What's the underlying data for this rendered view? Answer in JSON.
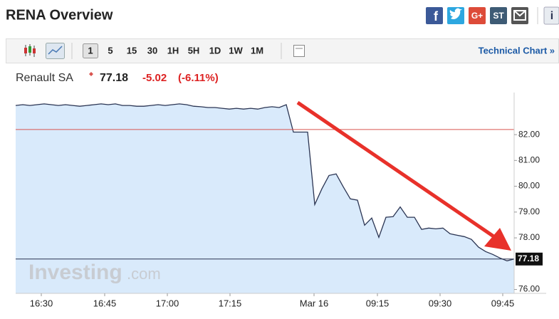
{
  "header": {
    "title": "RENA Overview",
    "share_letters": [
      "f",
      "G+",
      "ST",
      "i"
    ]
  },
  "toolbar": {
    "ranges": [
      "1",
      "5",
      "15",
      "30",
      "1H",
      "5H",
      "1D",
      "1W",
      "1M"
    ],
    "link": "Technical Chart »"
  },
  "quote": {
    "name": "Renault SA",
    "price": "77.18",
    "change": "-5.02",
    "change_percent": "(-6.11%)"
  },
  "watermark": {
    "brand": "Investing",
    "suffix": ".com"
  },
  "chart_data": {
    "type": "area",
    "color": "#2b3553",
    "fill": "#d9eafb",
    "reference_line": 82.2,
    "reference_color": "#d9534f",
    "values": [
      83.13,
      83.16,
      83.13,
      83.16,
      83.19,
      83.16,
      83.13,
      83.16,
      83.13,
      83.1,
      83.13,
      83.16,
      83.19,
      83.16,
      83.19,
      83.13,
      83.13,
      83.1,
      83.1,
      83.13,
      83.16,
      83.13,
      83.16,
      83.19,
      83.16,
      83.1,
      83.08,
      83.05,
      83.05,
      83.02,
      82.99,
      83.02,
      82.99,
      83.02,
      82.99,
      83.05,
      83.08,
      83.05,
      83.16,
      82.1,
      82.1,
      82.1,
      79.29,
      79.9,
      80.42,
      80.48,
      79.98,
      79.51,
      79.46,
      78.49,
      78.77,
      78.02,
      78.8,
      78.82,
      79.2,
      78.8,
      78.8,
      78.33,
      78.38,
      78.35,
      78.38,
      78.16,
      78.1,
      78.05,
      77.94,
      77.64,
      77.47,
      77.36,
      77.22,
      77.11,
      77.18
    ],
    "xlim": [
      0,
      70
    ],
    "xticks": [
      {
        "value": 3.6,
        "label": "16:30"
      },
      {
        "value": 12.5,
        "label": "16:45"
      },
      {
        "value": 21.3,
        "label": "17:00"
      },
      {
        "value": 30.1,
        "label": "17:15"
      },
      {
        "value": 41.9,
        "label": "Mar 16"
      },
      {
        "value": 50.8,
        "label": "09:15"
      },
      {
        "value": 59.6,
        "label": "09:30"
      },
      {
        "value": 68.4,
        "label": "09:45"
      }
    ],
    "ylim": [
      75.85,
      83.63
    ],
    "yticks": [
      {
        "value": 76,
        "label": "76.00"
      },
      {
        "value": 78,
        "label": "78.00"
      },
      {
        "value": 79,
        "label": "79.00"
      },
      {
        "value": 80,
        "label": "80.00"
      },
      {
        "value": 81,
        "label": "81.00"
      },
      {
        "value": 82,
        "label": "82.00"
      }
    ]
  }
}
